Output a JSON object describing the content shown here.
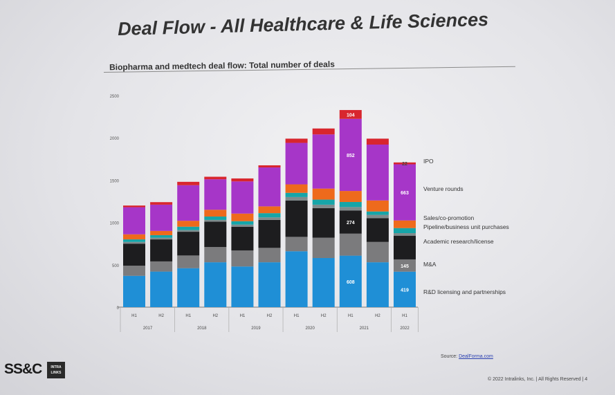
{
  "slide": {
    "title": "Deal Flow - All Healthcare & Life Sciences",
    "subtitle": "Biopharma and medtech deal flow: Total number of deals",
    "source_label": "Source:",
    "source_link": "DealForma.com",
    "copyright": "© 2022 Intralinks, Inc. | All Rights Reserved | 4",
    "logo_ssc": "SS&C",
    "logo_intralinks_line1": "INTRA",
    "logo_intralinks_line2": "LINKS"
  },
  "chart_data": {
    "type": "bar",
    "stacked": true,
    "title": "Biopharma and medtech deal flow: Total number of deals",
    "ylim": [
      0,
      2500
    ],
    "yticks": [
      0,
      500,
      1000,
      1500,
      2000,
      2500
    ],
    "grid": false,
    "legend": "right",
    "categories": [
      "H1",
      "H2",
      "H1",
      "H2",
      "H1",
      "H2",
      "H1",
      "H2",
      "H1",
      "H2",
      "H1"
    ],
    "years": [
      {
        "label": "2017",
        "span": [
          0,
          1
        ]
      },
      {
        "label": "2018",
        "span": [
          2,
          3
        ]
      },
      {
        "label": "2019",
        "span": [
          4,
          5
        ]
      },
      {
        "label": "2020",
        "span": [
          6,
          7
        ]
      },
      {
        "label": "2021",
        "span": [
          8,
          9
        ]
      },
      {
        "label": "2022",
        "span": [
          10,
          10
        ]
      }
    ],
    "series": [
      {
        "name": "R&D licensing and partnerships",
        "color": "#1f8fd6",
        "values": [
          370,
          420,
          460,
          530,
          480,
          530,
          660,
          580,
          608,
          530,
          419
        ]
      },
      {
        "name": "M&A",
        "color": "#7b7b7d",
        "values": [
          120,
          120,
          150,
          180,
          190,
          170,
          170,
          240,
          260,
          240,
          145
        ]
      },
      {
        "name": "Academic research/license",
        "color": "#1d1d1f",
        "values": [
          260,
          260,
          280,
          300,
          280,
          330,
          430,
          350,
          274,
          280,
          280
        ]
      },
      {
        "name": "Pipeline/business unit purchases",
        "color": "#7f8b8c",
        "values": [
          20,
          20,
          20,
          20,
          25,
          30,
          40,
          40,
          40,
          40,
          30
        ]
      },
      {
        "name": "Sales/co-promotion",
        "color": "#16a5a8",
        "values": [
          30,
          30,
          40,
          40,
          40,
          50,
          50,
          60,
          60,
          40,
          60
        ]
      },
      {
        "name": "",
        "color": "#ee6a1c",
        "values": [
          60,
          50,
          70,
          80,
          90,
          80,
          100,
          130,
          130,
          130,
          90
        ]
      },
      {
        "name": "Venture rounds",
        "color": "#a636c8",
        "values": [
          320,
          310,
          420,
          360,
          380,
          460,
          490,
          640,
          852,
          660,
          663
        ]
      },
      {
        "name": "IPO",
        "color": "#d8262e",
        "values": [
          20,
          30,
          40,
          30,
          35,
          25,
          50,
          70,
          104,
          70,
          22
        ]
      }
    ],
    "data_labels": [
      {
        "series": 0,
        "index": 8,
        "text": "608"
      },
      {
        "series": 0,
        "index": 10,
        "text": "419"
      },
      {
        "series": 1,
        "index": 10,
        "text": "145"
      },
      {
        "series": 2,
        "index": 8,
        "text": "274"
      },
      {
        "series": 6,
        "index": 8,
        "text": "852"
      },
      {
        "series": 6,
        "index": 10,
        "text": "663"
      },
      {
        "series": 7,
        "index": 8,
        "text": "104"
      },
      {
        "series": 7,
        "index": 10,
        "text": "22"
      }
    ]
  }
}
